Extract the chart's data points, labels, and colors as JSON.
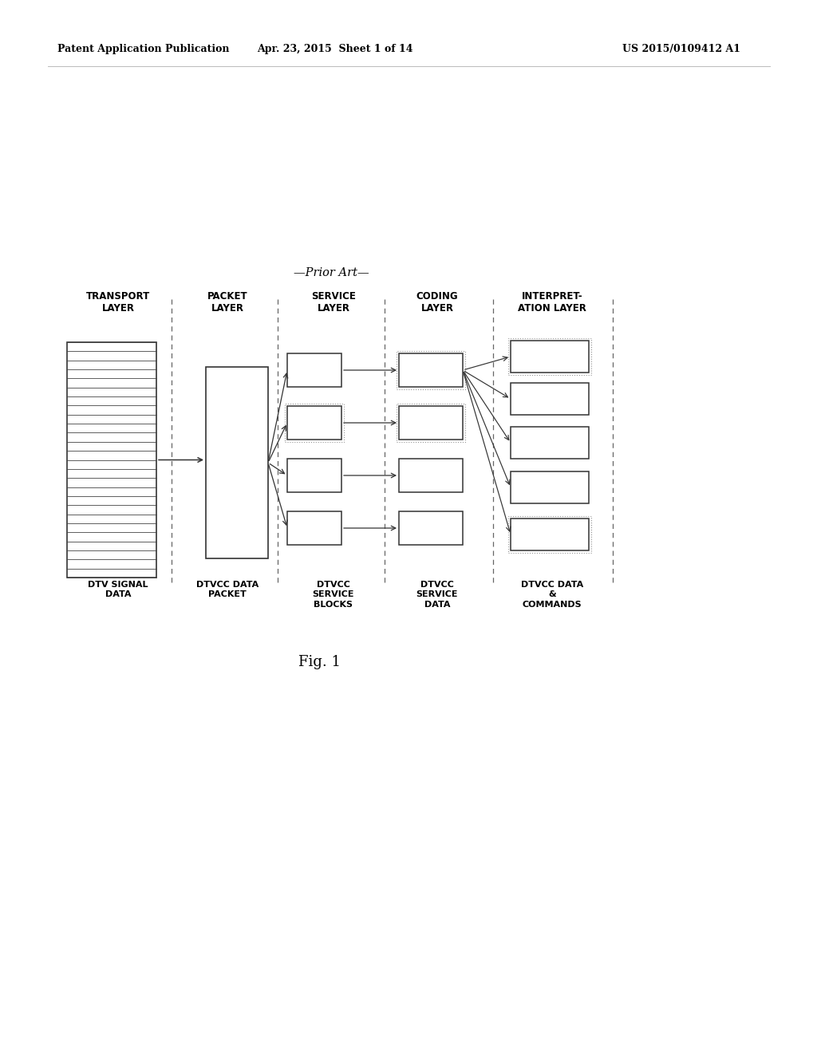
{
  "header_left": "Patent Application Publication",
  "header_mid": "Apr. 23, 2015  Sheet 1 of 14",
  "header_right": "US 2015/0109412 A1",
  "prior_art_label": "—Prior Art—",
  "fig_label": "Fig. 1",
  "col_headers": [
    "TRANSPORT\nLAYER",
    "PACKET\nLAYER",
    "SERVICE\nLAYER",
    "CODING\nLAYER",
    "INTERPRET-\nATION LAYER"
  ],
  "col_labels": [
    "DTV SIGNAL\nDATA",
    "DTVCC DATA\nPACKET",
    "DTVCC\nSERVICE\nBLOCKS",
    "DTVCC\nSERVICE\nDATA",
    "DTVCC DATA\n&\nCOMMANDS"
  ],
  "bg_color": "#ffffff",
  "text_color": "#000000",
  "edge_color": "#333333",
  "dash_color": "#666666",
  "arrow_color": "#333333",
  "hatch_line_color": "#444444"
}
